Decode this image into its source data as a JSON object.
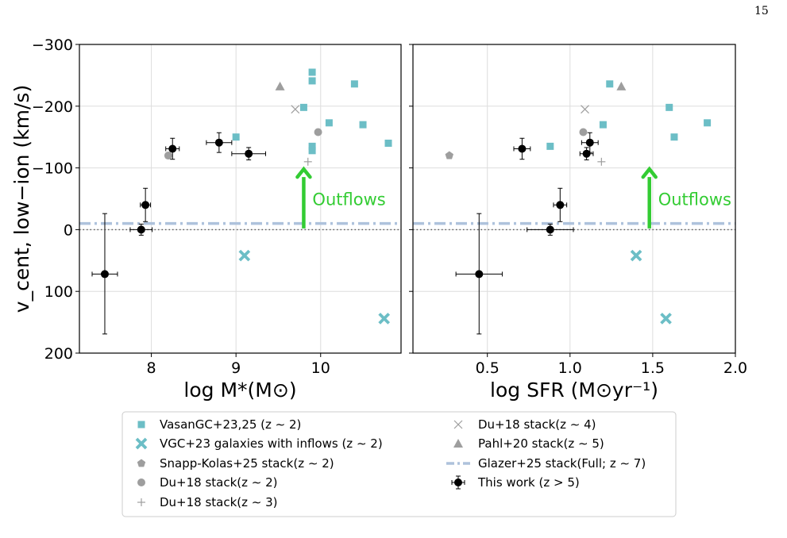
{
  "page_number": "15",
  "colors": {
    "teal": "#6cbec6",
    "gray": "#9e9e9e",
    "black": "#000000",
    "blue_dash": "#aec2dc",
    "green": "#33cc33",
    "grid": "#dddddd"
  },
  "chart_data": [
    {
      "type": "scatter",
      "xlabel": "log M*(M⊙)",
      "ylabel": "v_cent, low−ion (km/s)",
      "xlim": [
        7.15,
        10.95
      ],
      "ylim": [
        -300,
        200
      ],
      "y_inverted": true,
      "xticks": [
        8,
        9,
        10
      ],
      "yticks": [
        -300,
        -200,
        -100,
        0,
        100,
        200
      ],
      "ytick_labels": [
        "−300",
        "−200",
        "−100",
        "0",
        "100",
        "200"
      ],
      "grid": true,
      "hline_dotted": 0,
      "glazer_level": -10,
      "arrow": {
        "x": 9.8,
        "y_from": -2,
        "y_to": -98,
        "label": "Outflows"
      },
      "series": {
        "vasan": [
          [
            9.0,
            -150
          ],
          [
            9.8,
            -198
          ],
          [
            9.9,
            -255
          ],
          [
            9.9,
            -241
          ],
          [
            9.9,
            -135
          ],
          [
            9.9,
            -128
          ],
          [
            10.1,
            -173
          ],
          [
            10.4,
            -236
          ],
          [
            10.5,
            -170
          ],
          [
            10.8,
            -140
          ]
        ],
        "vgc_inflow": [
          [
            9.1,
            42
          ],
          [
            10.75,
            144
          ]
        ],
        "snapp": [],
        "du_z2": [
          [
            8.2,
            -120
          ],
          [
            9.97,
            -158
          ]
        ],
        "du_z3": [
          [
            9.85,
            -110
          ]
        ],
        "du_z4": [
          [
            9.7,
            -195
          ]
        ],
        "pahl": [
          [
            9.52,
            -232
          ]
        ],
        "this_work": [
          {
            "x": 7.45,
            "y": 72,
            "xerr": 0.15,
            "yerr": [
              98,
              97
            ]
          },
          {
            "x": 7.88,
            "y": 0,
            "xerr": 0.13,
            "yerr": [
              9,
              9
            ]
          },
          {
            "x": 7.93,
            "y": -40,
            "xerr": 0.06,
            "yerr": [
              27,
              27
            ]
          },
          {
            "x": 8.25,
            "y": -131,
            "xerr": 0.08,
            "yerr": [
              17,
              17
            ]
          },
          {
            "x": 8.8,
            "y": -141,
            "xerr": 0.15,
            "yerr": [
              16,
              16
            ]
          },
          {
            "x": 9.15,
            "y": -123,
            "xerr": 0.2,
            "yerr": [
              10,
              10
            ]
          }
        ]
      }
    },
    {
      "type": "scatter",
      "xlabel": "log SFR (M⊙yr⁻¹)",
      "xlim": [
        0.05,
        2.0
      ],
      "ylim": [
        -300,
        200
      ],
      "y_inverted": true,
      "xticks": [
        0.5,
        1.0,
        1.5,
        2.0
      ],
      "xtick_labels": [
        "0.5",
        "1.0",
        "1.5",
        "2.0"
      ],
      "yticks": [
        -300,
        -200,
        -100,
        0,
        100,
        200
      ],
      "grid": true,
      "hline_dotted": 0,
      "glazer_level": -10,
      "arrow": {
        "x": 1.48,
        "y_from": -2,
        "y_to": -98,
        "label": "Outflows"
      },
      "series": {
        "vasan": [
          [
            0.88,
            -135
          ],
          [
            1.2,
            -170
          ],
          [
            1.24,
            -236
          ],
          [
            1.6,
            -198
          ],
          [
            1.63,
            -150
          ],
          [
            1.83,
            -173
          ]
        ],
        "vgc_inflow": [
          [
            1.4,
            42
          ],
          [
            1.58,
            144
          ]
        ],
        "snapp": [
          [
            0.27,
            -120
          ]
        ],
        "du_z2": [
          [
            1.08,
            -158
          ]
        ],
        "du_z3": [
          [
            1.19,
            -110
          ]
        ],
        "du_z4": [
          [
            1.09,
            -195
          ]
        ],
        "pahl": [
          [
            1.31,
            -232
          ]
        ],
        "this_work": [
          {
            "x": 0.45,
            "y": 72,
            "xerr": 0.14,
            "yerr": [
              98,
              97
            ]
          },
          {
            "x": 0.88,
            "y": 0,
            "xerr": 0.14,
            "yerr": [
              9,
              9
            ]
          },
          {
            "x": 0.94,
            "y": -40,
            "xerr": 0.04,
            "yerr": [
              27,
              27
            ]
          },
          {
            "x": 0.71,
            "y": -131,
            "xerr": 0.05,
            "yerr": [
              17,
              17
            ]
          },
          {
            "x": 1.12,
            "y": -141,
            "xerr": 0.05,
            "yerr": [
              16,
              16
            ]
          },
          {
            "x": 1.1,
            "y": -123,
            "xerr": 0.04,
            "yerr": [
              10,
              10
            ]
          }
        ]
      }
    }
  ],
  "legend": {
    "placement": "bottom-center",
    "entries": [
      {
        "key": "vasan",
        "label": "VasanGC+23,25 (z ∼ 2)"
      },
      {
        "key": "vgc_inflow",
        "label": "VGC+23 galaxies with inflows (z ∼ 2)"
      },
      {
        "key": "snapp",
        "label": "Snapp-Kolas+25 stack(z ∼ 2)"
      },
      {
        "key": "du_z2",
        "label": "Du+18 stack(z ∼ 2)"
      },
      {
        "key": "du_z3",
        "label": "Du+18 stack(z ∼ 3)"
      },
      {
        "key": "du_z4",
        "label": "Du+18 stack(z ∼ 4)"
      },
      {
        "key": "pahl",
        "label": "Pahl+20 stack(z ∼ 5)"
      },
      {
        "key": "glazer",
        "label": "Glazer+25 stack(Full; z ∼ 7)"
      },
      {
        "key": "this_work",
        "label": "This work (z > 5)"
      }
    ]
  }
}
